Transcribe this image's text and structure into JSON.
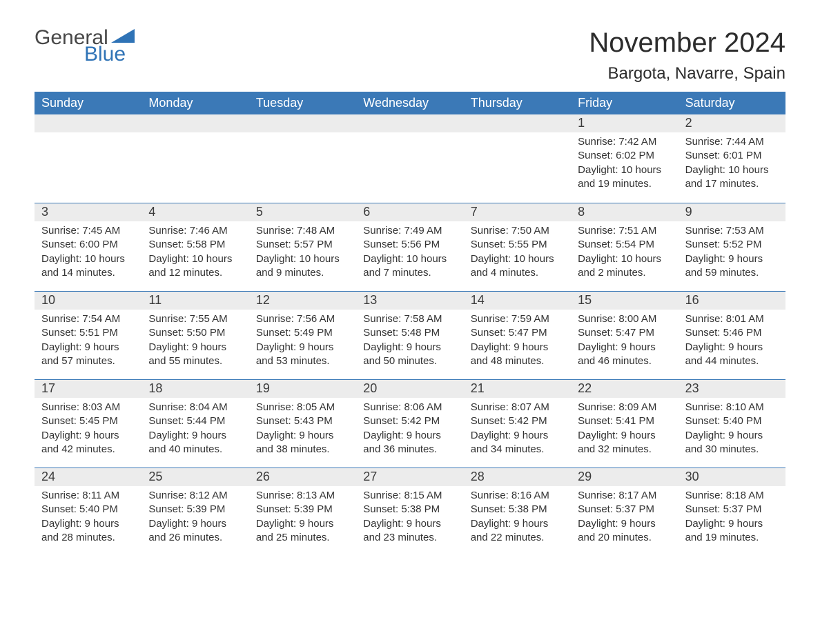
{
  "brand": {
    "general": "General",
    "blue": "Blue",
    "accent_color": "#2f73b6"
  },
  "title": "November 2024",
  "location": "Bargota, Navarre, Spain",
  "colors": {
    "header_bg": "#3b79b7",
    "header_text": "#ffffff",
    "daynum_bg": "#ececec",
    "border": "#3b79b7",
    "text": "#333333",
    "page_bg": "#ffffff"
  },
  "day_labels": [
    "Sunday",
    "Monday",
    "Tuesday",
    "Wednesday",
    "Thursday",
    "Friday",
    "Saturday"
  ],
  "weeks": [
    [
      {
        "num": "",
        "sunrise": "",
        "sunset": "",
        "daylight": ""
      },
      {
        "num": "",
        "sunrise": "",
        "sunset": "",
        "daylight": ""
      },
      {
        "num": "",
        "sunrise": "",
        "sunset": "",
        "daylight": ""
      },
      {
        "num": "",
        "sunrise": "",
        "sunset": "",
        "daylight": ""
      },
      {
        "num": "",
        "sunrise": "",
        "sunset": "",
        "daylight": ""
      },
      {
        "num": "1",
        "sunrise": "Sunrise: 7:42 AM",
        "sunset": "Sunset: 6:02 PM",
        "daylight": "Daylight: 10 hours and 19 minutes."
      },
      {
        "num": "2",
        "sunrise": "Sunrise: 7:44 AM",
        "sunset": "Sunset: 6:01 PM",
        "daylight": "Daylight: 10 hours and 17 minutes."
      }
    ],
    [
      {
        "num": "3",
        "sunrise": "Sunrise: 7:45 AM",
        "sunset": "Sunset: 6:00 PM",
        "daylight": "Daylight: 10 hours and 14 minutes."
      },
      {
        "num": "4",
        "sunrise": "Sunrise: 7:46 AM",
        "sunset": "Sunset: 5:58 PM",
        "daylight": "Daylight: 10 hours and 12 minutes."
      },
      {
        "num": "5",
        "sunrise": "Sunrise: 7:48 AM",
        "sunset": "Sunset: 5:57 PM",
        "daylight": "Daylight: 10 hours and 9 minutes."
      },
      {
        "num": "6",
        "sunrise": "Sunrise: 7:49 AM",
        "sunset": "Sunset: 5:56 PM",
        "daylight": "Daylight: 10 hours and 7 minutes."
      },
      {
        "num": "7",
        "sunrise": "Sunrise: 7:50 AM",
        "sunset": "Sunset: 5:55 PM",
        "daylight": "Daylight: 10 hours and 4 minutes."
      },
      {
        "num": "8",
        "sunrise": "Sunrise: 7:51 AM",
        "sunset": "Sunset: 5:54 PM",
        "daylight": "Daylight: 10 hours and 2 minutes."
      },
      {
        "num": "9",
        "sunrise": "Sunrise: 7:53 AM",
        "sunset": "Sunset: 5:52 PM",
        "daylight": "Daylight: 9 hours and 59 minutes."
      }
    ],
    [
      {
        "num": "10",
        "sunrise": "Sunrise: 7:54 AM",
        "sunset": "Sunset: 5:51 PM",
        "daylight": "Daylight: 9 hours and 57 minutes."
      },
      {
        "num": "11",
        "sunrise": "Sunrise: 7:55 AM",
        "sunset": "Sunset: 5:50 PM",
        "daylight": "Daylight: 9 hours and 55 minutes."
      },
      {
        "num": "12",
        "sunrise": "Sunrise: 7:56 AM",
        "sunset": "Sunset: 5:49 PM",
        "daylight": "Daylight: 9 hours and 53 minutes."
      },
      {
        "num": "13",
        "sunrise": "Sunrise: 7:58 AM",
        "sunset": "Sunset: 5:48 PM",
        "daylight": "Daylight: 9 hours and 50 minutes."
      },
      {
        "num": "14",
        "sunrise": "Sunrise: 7:59 AM",
        "sunset": "Sunset: 5:47 PM",
        "daylight": "Daylight: 9 hours and 48 minutes."
      },
      {
        "num": "15",
        "sunrise": "Sunrise: 8:00 AM",
        "sunset": "Sunset: 5:47 PM",
        "daylight": "Daylight: 9 hours and 46 minutes."
      },
      {
        "num": "16",
        "sunrise": "Sunrise: 8:01 AM",
        "sunset": "Sunset: 5:46 PM",
        "daylight": "Daylight: 9 hours and 44 minutes."
      }
    ],
    [
      {
        "num": "17",
        "sunrise": "Sunrise: 8:03 AM",
        "sunset": "Sunset: 5:45 PM",
        "daylight": "Daylight: 9 hours and 42 minutes."
      },
      {
        "num": "18",
        "sunrise": "Sunrise: 8:04 AM",
        "sunset": "Sunset: 5:44 PM",
        "daylight": "Daylight: 9 hours and 40 minutes."
      },
      {
        "num": "19",
        "sunrise": "Sunrise: 8:05 AM",
        "sunset": "Sunset: 5:43 PM",
        "daylight": "Daylight: 9 hours and 38 minutes."
      },
      {
        "num": "20",
        "sunrise": "Sunrise: 8:06 AM",
        "sunset": "Sunset: 5:42 PM",
        "daylight": "Daylight: 9 hours and 36 minutes."
      },
      {
        "num": "21",
        "sunrise": "Sunrise: 8:07 AM",
        "sunset": "Sunset: 5:42 PM",
        "daylight": "Daylight: 9 hours and 34 minutes."
      },
      {
        "num": "22",
        "sunrise": "Sunrise: 8:09 AM",
        "sunset": "Sunset: 5:41 PM",
        "daylight": "Daylight: 9 hours and 32 minutes."
      },
      {
        "num": "23",
        "sunrise": "Sunrise: 8:10 AM",
        "sunset": "Sunset: 5:40 PM",
        "daylight": "Daylight: 9 hours and 30 minutes."
      }
    ],
    [
      {
        "num": "24",
        "sunrise": "Sunrise: 8:11 AM",
        "sunset": "Sunset: 5:40 PM",
        "daylight": "Daylight: 9 hours and 28 minutes."
      },
      {
        "num": "25",
        "sunrise": "Sunrise: 8:12 AM",
        "sunset": "Sunset: 5:39 PM",
        "daylight": "Daylight: 9 hours and 26 minutes."
      },
      {
        "num": "26",
        "sunrise": "Sunrise: 8:13 AM",
        "sunset": "Sunset: 5:39 PM",
        "daylight": "Daylight: 9 hours and 25 minutes."
      },
      {
        "num": "27",
        "sunrise": "Sunrise: 8:15 AM",
        "sunset": "Sunset: 5:38 PM",
        "daylight": "Daylight: 9 hours and 23 minutes."
      },
      {
        "num": "28",
        "sunrise": "Sunrise: 8:16 AM",
        "sunset": "Sunset: 5:38 PM",
        "daylight": "Daylight: 9 hours and 22 minutes."
      },
      {
        "num": "29",
        "sunrise": "Sunrise: 8:17 AM",
        "sunset": "Sunset: 5:37 PM",
        "daylight": "Daylight: 9 hours and 20 minutes."
      },
      {
        "num": "30",
        "sunrise": "Sunrise: 8:18 AM",
        "sunset": "Sunset: 5:37 PM",
        "daylight": "Daylight: 9 hours and 19 minutes."
      }
    ]
  ]
}
